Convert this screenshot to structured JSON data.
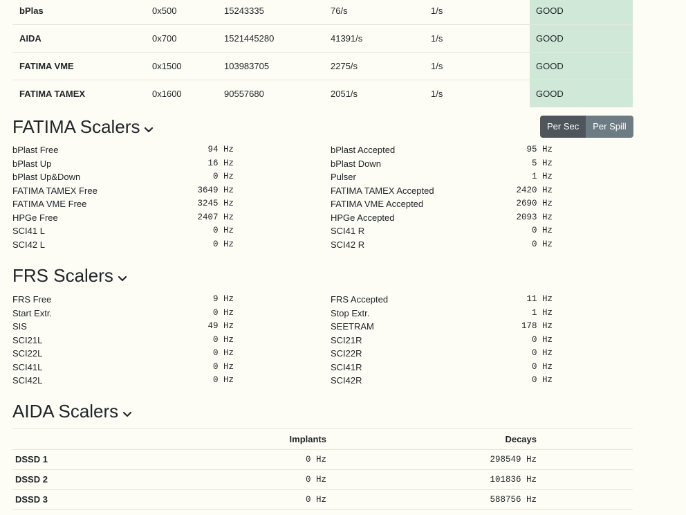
{
  "status": {
    "rows": [
      {
        "name": "bPlas",
        "address": "0x500",
        "count": "15243335",
        "rate": "76/s",
        "expected": "1/s",
        "state": "GOOD"
      },
      {
        "name": "AIDA",
        "address": "0x700",
        "count": "1521445280",
        "rate": "41391/s",
        "expected": "1/s",
        "state": "GOOD"
      },
      {
        "name": "FATIMA VME",
        "address": "0x1500",
        "count": "103983705",
        "rate": "2275/s",
        "expected": "1/s",
        "state": "GOOD"
      },
      {
        "name": "FATIMA TAMEX",
        "address": "0x1600",
        "count": "90557680",
        "rate": "2051/s",
        "expected": "1/s",
        "state": "GOOD"
      }
    ],
    "good_color": "#cfe8d8"
  },
  "toggle": {
    "per_sec_label": "Per Sec",
    "per_spill_label": "Per Spill",
    "active": "Per Sec"
  },
  "fatima": {
    "title": "FATIMA Scalers",
    "left": [
      {
        "label": "bPlast Free",
        "value": "94 Hz"
      },
      {
        "label": "bPlast Up",
        "value": "16 Hz"
      },
      {
        "label": "bPlast Up&Down",
        "value": "0 Hz"
      },
      {
        "label": "FATIMA TAMEX Free",
        "value": "3649 Hz"
      },
      {
        "label": "FATIMA VME Free",
        "value": "3245 Hz"
      },
      {
        "label": "HPGe Free",
        "value": "2407 Hz"
      },
      {
        "label": "SCI41 L",
        "value": "0 Hz"
      },
      {
        "label": "SCI42 L",
        "value": "0 Hz"
      }
    ],
    "right": [
      {
        "label": "bPlast Accepted",
        "value": "95 Hz"
      },
      {
        "label": "bPlast Down",
        "value": "5 Hz"
      },
      {
        "label": "Pulser",
        "value": "1 Hz"
      },
      {
        "label": "FATIMA TAMEX Accepted",
        "value": "2420 Hz"
      },
      {
        "label": "FATIMA VME Accepted",
        "value": "2690 Hz"
      },
      {
        "label": "HPGe Accepted",
        "value": "2093 Hz"
      },
      {
        "label": "SCI41 R",
        "value": "0 Hz"
      },
      {
        "label": "SCI42 R",
        "value": "0 Hz"
      }
    ]
  },
  "frs": {
    "title": "FRS Scalers",
    "left": [
      {
        "label": "FRS Free",
        "value": "9 Hz"
      },
      {
        "label": "Start Extr.",
        "value": "0 Hz"
      },
      {
        "label": "SIS",
        "value": "49 Hz"
      },
      {
        "label": "SCI21L",
        "value": "0 Hz"
      },
      {
        "label": "SCI22L",
        "value": "0 Hz"
      },
      {
        "label": "SCI41L",
        "value": "0 Hz"
      },
      {
        "label": "SCI42L",
        "value": "0 Hz"
      }
    ],
    "right": [
      {
        "label": "FRS Accepted",
        "value": "11 Hz"
      },
      {
        "label": "Stop Extr.",
        "value": "1 Hz"
      },
      {
        "label": "SEETRAM",
        "value": "178 Hz"
      },
      {
        "label": "SCI21R",
        "value": "0 Hz"
      },
      {
        "label": "SCI22R",
        "value": "0 Hz"
      },
      {
        "label": "SCI41R",
        "value": "0 Hz"
      },
      {
        "label": "SCI42R",
        "value": "0 Hz"
      }
    ]
  },
  "aida": {
    "title": "AIDA Scalers",
    "headers": {
      "implants": "Implants",
      "decays": "Decays"
    },
    "rows": [
      {
        "name": "DSSD 1",
        "implants": "0 Hz",
        "decays": "298549 Hz"
      },
      {
        "name": "DSSD 2",
        "implants": "0 Hz",
        "decays": "101836 Hz"
      },
      {
        "name": "DSSD 3",
        "implants": "0 Hz",
        "decays": "588756 Hz"
      }
    ]
  }
}
